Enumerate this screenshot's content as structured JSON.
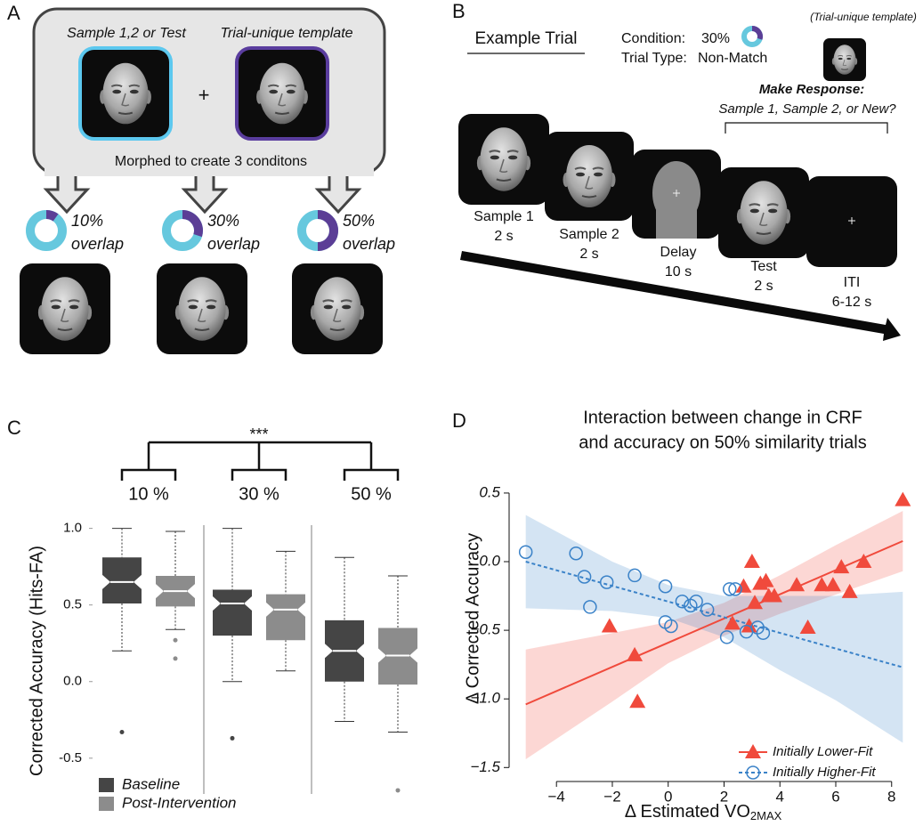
{
  "panel_a": {
    "letter": "A",
    "source_label": "Sample 1,2 or Test",
    "template_label": "Trial-unique template",
    "operator": "+",
    "caption": "Morphed to create 3 conditons",
    "conditions": [
      {
        "value": 10,
        "label": "10%",
        "text": "overlap"
      },
      {
        "value": 30,
        "label": "30%",
        "text": "overlap"
      },
      {
        "value": 50,
        "label": "50%",
        "text": "overlap"
      }
    ]
  },
  "panel_b": {
    "letter": "B",
    "title": "Example Trial",
    "condition_label": "Condition:",
    "condition": {
      "value": 30,
      "label": "30%"
    },
    "trial_type_label": "Trial Type:",
    "trial_type": "Non-Match",
    "template_label": "(Trial-unique template)",
    "response_title": "Make Response:",
    "response_options": "Sample 1, Sample 2, or New?",
    "steps": [
      {
        "name": "Sample 1",
        "duration": "2 s"
      },
      {
        "name": "Sample 2",
        "duration": "2 s"
      },
      {
        "name": "Delay",
        "duration": "10 s"
      },
      {
        "name": "Test",
        "duration": "2 s"
      },
      {
        "name": "ITI",
        "duration": "6-12 s"
      }
    ]
  },
  "chart_data": [
    {
      "type": "box",
      "panel": "C",
      "ylabel": "Corrected Accuracy (Hits-FA)",
      "significance": "***",
      "categories": [
        "10 %",
        "30 %",
        "50 %"
      ],
      "ylim": [
        -0.78,
        1.05
      ],
      "yticks": [
        {
          "value": 1,
          "label": "1.0"
        },
        0.5,
        {
          "value": 0,
          "label": "0.0"
        },
        -0.5
      ],
      "legend": "lower left",
      "series": [
        {
          "name": "Baseline",
          "color": "#454545",
          "whisker_low": [
            0.2,
            0.0,
            -0.26
          ],
          "q1": [
            0.51,
            0.3,
            0.0
          ],
          "median": [
            0.65,
            0.51,
            0.2
          ],
          "q3": [
            0.81,
            0.6,
            0.4
          ],
          "whisker_high": [
            1.0,
            1.0,
            0.81
          ],
          "outliers": [
            [
              -0.33
            ],
            [
              -0.37
            ],
            []
          ]
        },
        {
          "name": "Post-Intervention",
          "color": "#8c8c8c",
          "whisker_low": [
            0.34,
            0.07,
            -0.33
          ],
          "q1": [
            0.49,
            0.27,
            -0.02
          ],
          "median": [
            0.59,
            0.47,
            0.17
          ],
          "q3": [
            0.69,
            0.57,
            0.35
          ],
          "whisker_high": [
            0.98,
            0.85,
            0.69
          ],
          "outliers": [
            [
              0.27,
              0.15
            ],
            [],
            [
              -0.71
            ]
          ]
        }
      ]
    },
    {
      "type": "scatter",
      "panel": "D",
      "title": [
        "Interaction between change in CRF",
        "and accuracy on 50% similarity trials"
      ],
      "xlabel": "Δ Estimated VO",
      "xlabel_sub": "2MAX",
      "ylabel": "Δ Corrected Accuracy",
      "xlim": [
        -5.6,
        8.9
      ],
      "ylim": [
        -1.55,
        0.72
      ],
      "xticks": [
        {
          "value": -4,
          "label": "−4"
        },
        {
          "value": -2,
          "label": "−2"
        },
        0,
        2,
        4,
        6,
        8
      ],
      "yticks": [
        0.5,
        {
          "value": 0,
          "label": "0.0"
        },
        {
          "value": -0.5,
          "label": "−0.5"
        },
        {
          "value": -1,
          "label": "−1.0"
        },
        {
          "value": -1.5,
          "label": "−1.5"
        }
      ],
      "legend": "lower right",
      "series": [
        {
          "name": "Initially Lower-Fit",
          "color": "#f04a3c",
          "marker": "triangle",
          "line_style": "solid",
          "x": [
            -2.1,
            -1.2,
            -1.1,
            2.3,
            2.7,
            2.9,
            3.0,
            3.1,
            3.3,
            3.5,
            3.6,
            3.8,
            4.6,
            5.0,
            5.5,
            5.9,
            6.2,
            6.5,
            7.0,
            8.4
          ],
          "values": [
            -0.47,
            -0.68,
            -1.02,
            -0.45,
            -0.18,
            -0.47,
            0.0,
            -0.3,
            -0.16,
            -0.14,
            -0.25,
            -0.25,
            -0.17,
            -0.48,
            -0.17,
            -0.17,
            -0.04,
            -0.22,
            0.0,
            0.45
          ],
          "fit_x": [
            -5.1,
            8.4
          ],
          "fit": [
            -1.04,
            0.15
          ],
          "band_x": [
            -5.1,
            -2,
            0,
            2,
            4,
            6,
            8.4
          ],
          "band_lower": [
            -1.44,
            -1.02,
            -0.74,
            -0.54,
            -0.38,
            -0.24,
            -0.07
          ],
          "band_upper": [
            -0.64,
            -0.52,
            -0.44,
            -0.3,
            -0.1,
            0.12,
            0.37
          ]
        },
        {
          "name": "Initially Higher-Fit",
          "color": "#3a82c8",
          "marker": "circle",
          "line_style": "dashed",
          "x": [
            -5.1,
            -3.3,
            -3.0,
            -2.8,
            -2.2,
            -1.2,
            -0.1,
            -0.1,
            0.1,
            0.5,
            0.8,
            1.0,
            1.4,
            2.1,
            2.2,
            2.4,
            2.8,
            3.2,
            3.4
          ],
          "values": [
            0.07,
            0.06,
            -0.11,
            -0.33,
            -0.15,
            -0.1,
            -0.18,
            -0.44,
            -0.47,
            -0.29,
            -0.32,
            -0.29,
            -0.35,
            -0.55,
            -0.2,
            -0.2,
            -0.51,
            -0.48,
            -0.52
          ],
          "fit_x": [
            -5.1,
            8.4
          ],
          "fit": [
            0.0,
            -0.77
          ],
          "band_x": [
            -5.1,
            -2,
            0,
            2,
            4,
            6,
            8.4
          ],
          "band_lower": [
            -0.34,
            -0.36,
            -0.41,
            -0.55,
            -0.79,
            -1.01,
            -1.32
          ],
          "band_upper": [
            0.34,
            0.0,
            -0.17,
            -0.25,
            -0.25,
            -0.25,
            -0.22
          ]
        }
      ]
    }
  ]
}
